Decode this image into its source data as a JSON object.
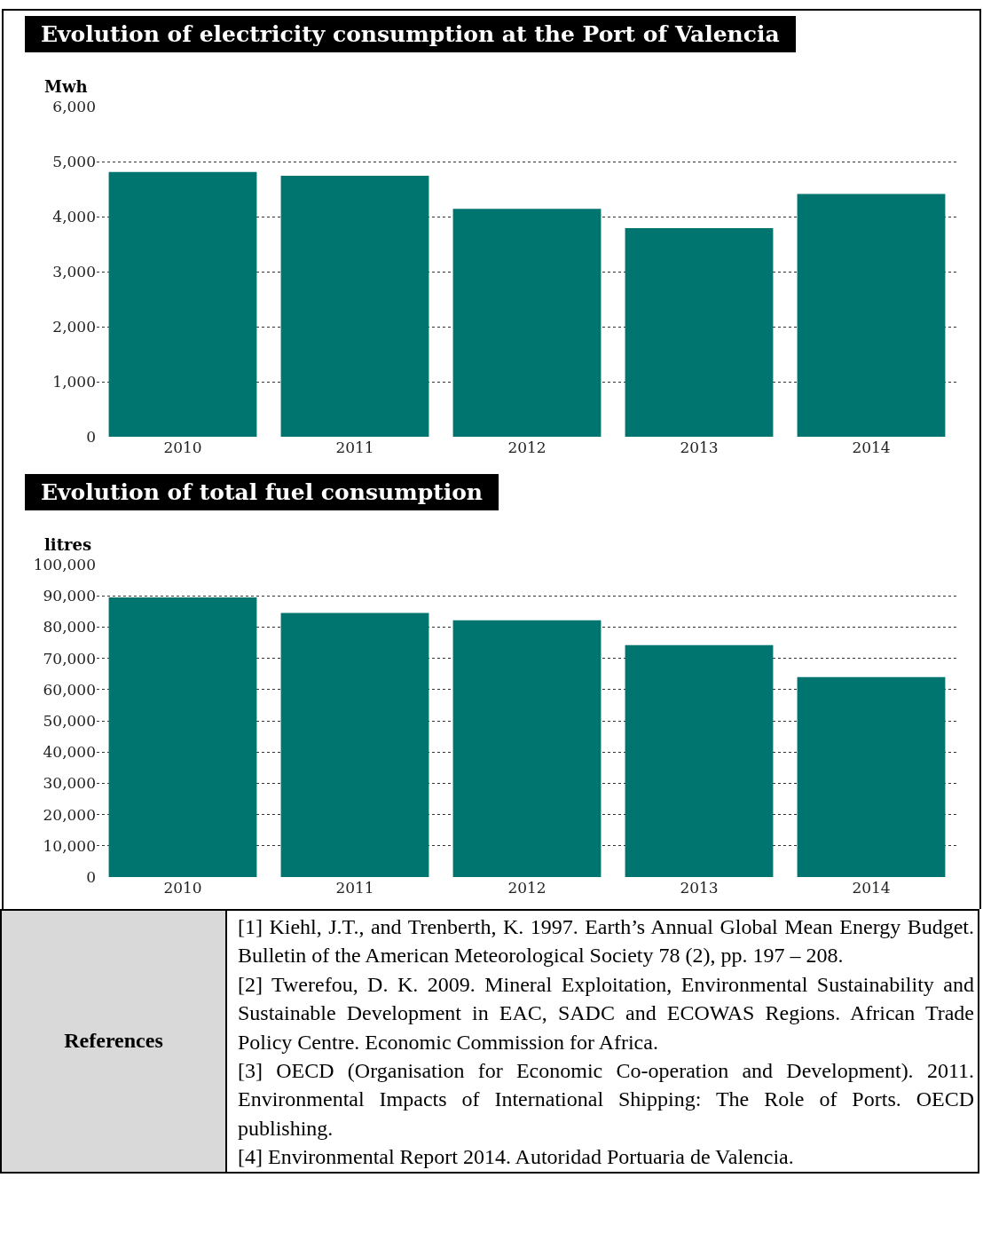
{
  "chart_data": [
    {
      "type": "bar",
      "title": "Evolution of electricity consumption at the Port of Valencia",
      "ylabel": "Mwh",
      "categories": [
        "2010",
        "2011",
        "2012",
        "2013",
        "2014"
      ],
      "values": [
        4810,
        4740,
        4140,
        3790,
        4410
      ],
      "color": "#00756f",
      "ylim": [
        0,
        6000
      ],
      "yticks": [
        {
          "value": 0,
          "label": "0"
        },
        {
          "value": 1000,
          "label": "1,000"
        },
        {
          "value": 2000,
          "label": "2,000"
        },
        {
          "value": 3000,
          "label": "3,000"
        },
        {
          "value": 4000,
          "label": "4,000"
        },
        {
          "value": 5000,
          "label": "5,000"
        },
        {
          "value": 6000,
          "label": "6,000"
        }
      ],
      "grid": "y"
    },
    {
      "type": "bar",
      "title": "Evolution of total fuel consumption",
      "ylabel": "litres",
      "categories": [
        "2010",
        "2011",
        "2012",
        "2013",
        "2014"
      ],
      "values": [
        89500,
        84500,
        82200,
        74200,
        64000
      ],
      "color": "#00756f",
      "ylim": [
        0,
        100000
      ],
      "yticks": [
        {
          "value": 0,
          "label": "0"
        },
        {
          "value": 10000,
          "label": "10,000"
        },
        {
          "value": 20000,
          "label": "20,000"
        },
        {
          "value": 30000,
          "label": "30,000"
        },
        {
          "value": 40000,
          "label": "40,000"
        },
        {
          "value": 50000,
          "label": "50,000"
        },
        {
          "value": 60000,
          "label": "60,000"
        },
        {
          "value": 70000,
          "label": "70,000"
        },
        {
          "value": 80000,
          "label": "80,000"
        },
        {
          "value": 90000,
          "label": "90,000"
        },
        {
          "value": 100000,
          "label": "100,000"
        }
      ],
      "grid": "y",
      "annotations": [
        "References",
        "[1] Kiehl, J.T., and Trenberth, K. 1997. Earth’s Annual Global Mean Energy Budget. Bulletin of the American Meteorological Society 78 (2), pp. 197 – 208.",
        "[2] Twerefou, D. K. 2009. Mineral Exploitation, Environmental Sustainability and Sustainable Development in EAC, SADC and ECOWAS Regions. African Trade Policy Centre. Economic Commission for Africa.",
        "[3] OECD (Organisation for Economic Co-operation and Development). 2011. Environmental Impacts of International Shipping: The Role of Ports. OECD publishing.",
        "[4] Environmental Report 2014. Autoridad Portuaria de Valencia."
      ]
    }
  ]
}
